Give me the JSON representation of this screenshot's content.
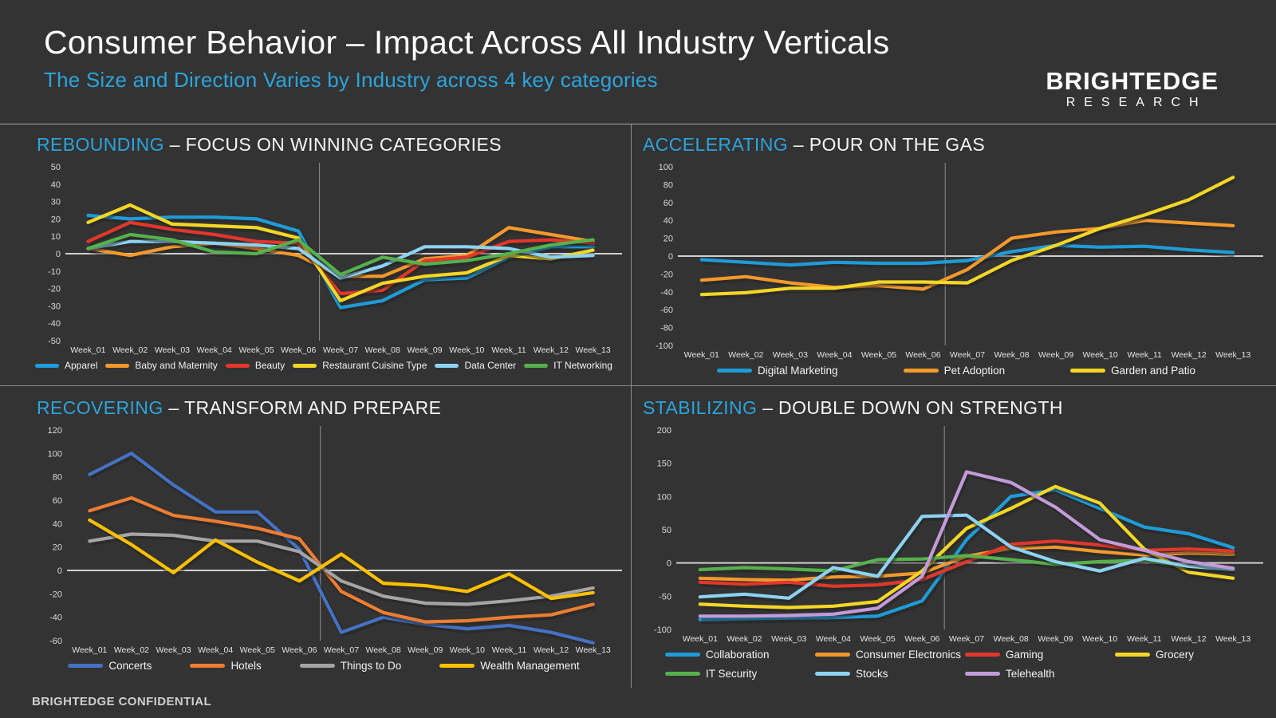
{
  "header": {
    "title": "Consumer Behavior – Impact Across All Industry Verticals",
    "subtitle": "The Size and Direction Varies by Industry across 4 key categories",
    "logo_line1": "BRIGHTEDGE",
    "logo_line2": "RESEARCH"
  },
  "footer": {
    "confidential_label": "BRIGHTEDGE CONFIDENTIAL"
  },
  "chart_data": [
    {
      "id": "rebounding",
      "type": "line",
      "title_highlight": "REBOUNDING",
      "title_rest": " – FOCUS ON WINNING CATEGORIES",
      "ylim": [
        -50,
        50
      ],
      "ystep": 10,
      "grid": false,
      "legend_position": "bottom",
      "categories": [
        "Week_01",
        "Week_02",
        "Week_03",
        "Week_04",
        "Week_05",
        "Week_06",
        "Week_07",
        "Week_08",
        "Week_09",
        "Week_10",
        "Week_11",
        "Week_12",
        "Week_13"
      ],
      "series": [
        {
          "name": "Apparel",
          "color": "#1e9cd8",
          "values": [
            22,
            20,
            21,
            21,
            20,
            13,
            -31,
            -27,
            -15,
            -14,
            -2,
            4,
            4
          ]
        },
        {
          "name": "Baby and Maternity",
          "color": "#f5992b",
          "values": [
            3,
            -1,
            4,
            6,
            3,
            -1,
            -13,
            -13,
            -3,
            -1,
            15,
            11,
            7
          ]
        },
        {
          "name": "Beauty",
          "color": "#e2372b",
          "values": [
            7,
            18,
            14,
            11,
            7,
            6,
            -23,
            -21,
            -4,
            -2,
            7,
            8,
            6
          ]
        },
        {
          "name": "Restaurant Cuisine Type",
          "color": "#f4d626",
          "values": [
            18,
            28,
            17,
            16,
            15,
            9,
            -27,
            -17,
            -13,
            -11,
            -1,
            -3,
            2
          ]
        },
        {
          "name": "Data Center",
          "color": "#8dd2f2",
          "values": [
            3,
            7,
            7,
            6,
            5,
            3,
            -14,
            -7,
            4,
            4,
            3,
            -2,
            -1
          ]
        },
        {
          "name": "IT Networking",
          "color": "#55b14c",
          "values": [
            3,
            11,
            8,
            1,
            0,
            8,
            -12,
            -2,
            -6,
            -4,
            0,
            5,
            8
          ]
        }
      ]
    },
    {
      "id": "accelerating",
      "type": "line",
      "title_highlight": "ACCELERATING",
      "title_rest": " – POUR ON THE GAS",
      "ylim": [
        -100,
        100
      ],
      "ystep": 20,
      "grid": false,
      "legend_position": "bottom",
      "categories": [
        "Week_01",
        "Week_02",
        "Week_03",
        "Week_04",
        "Week_05",
        "Week_06",
        "Week_07",
        "Week_08",
        "Week_09",
        "Week_10",
        "Week_11",
        "Week_12",
        "Week_13"
      ],
      "series": [
        {
          "name": "Digital Marketing",
          "color": "#1e9cd8",
          "values": [
            -4,
            -7,
            -10,
            -7,
            -8,
            -8,
            -5,
            5,
            12,
            10,
            11,
            7,
            4
          ]
        },
        {
          "name": "Pet Adoption",
          "color": "#f5992b",
          "values": [
            -27,
            -23,
            -30,
            -35,
            -33,
            -37,
            -15,
            20,
            27,
            31,
            40,
            37,
            34
          ]
        },
        {
          "name": "Garden and Patio",
          "color": "#f4d626",
          "values": [
            -43,
            -41,
            -36,
            -36,
            -29,
            -29,
            -30,
            -5,
            12,
            31,
            46,
            63,
            88
          ]
        }
      ]
    },
    {
      "id": "recovering",
      "type": "line",
      "title_highlight": "RECOVERING",
      "title_rest": " – TRANSFORM AND PREPARE",
      "ylim": [
        -60,
        120
      ],
      "ystep": 20,
      "grid": false,
      "legend_position": "bottom",
      "categories": [
        "Week_01",
        "Week_02",
        "Week_03",
        "Week_04",
        "Week_05",
        "Week_06",
        "Week_07",
        "Week_08",
        "Week_09",
        "Week_10",
        "Week_11",
        "Week_12",
        "Week_13"
      ],
      "series": [
        {
          "name": "Concerts",
          "color": "#4472c4",
          "values": [
            82,
            100,
            73,
            50,
            50,
            18,
            -53,
            -40,
            -46,
            -50,
            -47,
            -53,
            -62
          ]
        },
        {
          "name": "Hotels",
          "color": "#ed7d31",
          "values": [
            51,
            62,
            47,
            42,
            36,
            27,
            -18,
            -36,
            -44,
            -43,
            -40,
            -38,
            -29
          ]
        },
        {
          "name": "Things to Do",
          "color": "#a5a5a5",
          "values": [
            25,
            31,
            30,
            25,
            25,
            16,
            -9,
            -22,
            -28,
            -29,
            -26,
            -22,
            -15
          ]
        },
        {
          "name": "Wealth Management",
          "color": "#ffc000",
          "values": [
            43,
            22,
            -2,
            26,
            7,
            -9,
            14,
            -11,
            -13,
            -18,
            -3,
            -24,
            -19
          ]
        }
      ]
    },
    {
      "id": "stabilizing",
      "type": "line",
      "title_highlight": "STABILIZING",
      "title_rest": " – DOUBLE DOWN ON STRENGTH",
      "ylim": [
        -100,
        200
      ],
      "ystep": 50,
      "grid": false,
      "legend_position": "bottom",
      "categories": [
        "Week_01",
        "Week_02",
        "Week_03",
        "Week_04",
        "Week_05",
        "Week_06",
        "Week_07",
        "Week_08",
        "Week_09",
        "Week_10",
        "Week_11",
        "Week_12",
        "Week_13"
      ],
      "series": [
        {
          "name": "Collaboration",
          "color": "#1e9cd8",
          "values": [
            -85,
            -84,
            -83,
            -82,
            -80,
            -57,
            35,
            100,
            110,
            82,
            54,
            44,
            23
          ]
        },
        {
          "name": "Consumer Electronics",
          "color": "#f5992b",
          "values": [
            -23,
            -25,
            -26,
            -21,
            -20,
            -15,
            10,
            22,
            24,
            17,
            12,
            15,
            13
          ]
        },
        {
          "name": "Gaming",
          "color": "#e2372b",
          "values": [
            -29,
            -32,
            -29,
            -35,
            -33,
            -25,
            2,
            28,
            33,
            27,
            19,
            21,
            18
          ]
        },
        {
          "name": "Grocery",
          "color": "#f4d626",
          "values": [
            -62,
            -65,
            -67,
            -65,
            -58,
            -12,
            52,
            82,
            115,
            90,
            21,
            -14,
            -23
          ]
        },
        {
          "name": "IT Security",
          "color": "#55b14c",
          "values": [
            -10,
            -7,
            -9,
            -12,
            5,
            6,
            11,
            5,
            -2,
            2,
            4,
            -5,
            -8
          ]
        },
        {
          "name": "Stocks",
          "color": "#8dd2f2",
          "values": [
            -51,
            -47,
            -53,
            -7,
            -20,
            70,
            72,
            24,
            2,
            -12,
            7,
            -5,
            -10
          ]
        },
        {
          "name": "Telehealth",
          "color": "#c39bd9",
          "values": [
            -80,
            -80,
            -79,
            -77,
            -68,
            -20,
            137,
            121,
            84,
            35,
            19,
            2,
            -8
          ]
        }
      ]
    }
  ]
}
